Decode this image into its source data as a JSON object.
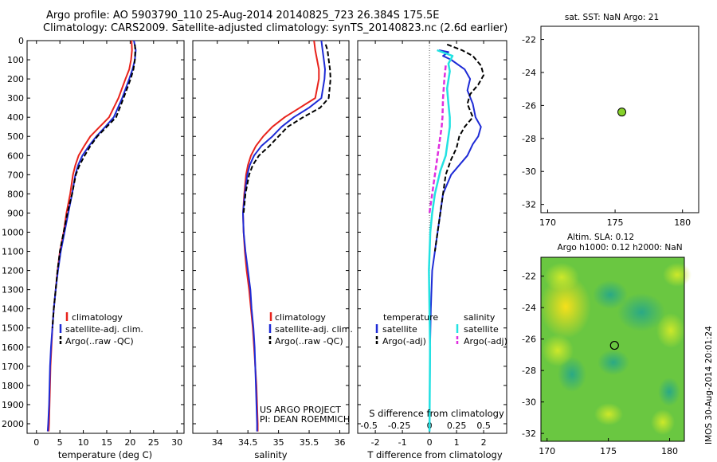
{
  "header": {
    "line1": "Argo profile: AO 5903790_110 25-Aug-2014 20140825_723 26.384S 175.5E",
    "line2": "Climatology: CARS2009. Satellite-adjusted climatology: synTS_20140823.nc (2.6d earlier)"
  },
  "colors": {
    "climatology": "#e8231c",
    "satellite": "#1e2bd6",
    "argo": "#000000",
    "sal_satellite": "#22e2e2",
    "sal_argo": "#e02ee0",
    "sst_marker": "#86d12a"
  },
  "legend_left": [
    "climatology",
    "satellite-adj. clim.",
    "Argo(..raw -QC)"
  ],
  "legend_diff": {
    "temperature": "temperature",
    "salinity": "salinity",
    "t_sat": "satellite",
    "t_argo": "Argo(-adj)",
    "s_sat": "satellite",
    "s_argo": "Argo(-adj)"
  },
  "credits": {
    "line1": "US ARGO PROJECT",
    "line2": "PI: DEAN ROEMMICH"
  },
  "sst_map": {
    "title": "sat. SST: NaN Argo: 21",
    "xticks": [
      "170",
      "175",
      "180"
    ],
    "yticks": [
      "-22",
      "-24",
      "-26",
      "-28",
      "-30",
      "-32"
    ],
    "xlim": [
      169.5,
      181.2
    ],
    "ylim": [
      -32.5,
      -21.2
    ],
    "float_position": [
      175.5,
      -26.4
    ]
  },
  "sla_map": {
    "title1": "Altim. SLA: 0.12",
    "title2": "Argo h1000: 0.12 h2000: NaN",
    "xticks": [
      "170",
      "175",
      "180"
    ],
    "yticks": [
      "-22",
      "-24",
      "-26",
      "-28",
      "-30",
      "-32"
    ],
    "xlim": [
      169.5,
      181.2
    ],
    "ylim": [
      -32.5,
      -20.8
    ],
    "float_position": [
      175.5,
      -26.4
    ]
  },
  "timestamp": "IMOS 30-Aug-2014 20:01:24",
  "chart_data": [
    {
      "type": "line",
      "panel": "temperature",
      "xlabel": "temperature (deg C)",
      "ylabel": "",
      "xlim": [
        -2,
        31.5
      ],
      "ylim": [
        2050,
        0
      ],
      "xticks": [
        0,
        5,
        10,
        15,
        20,
        25,
        30
      ],
      "yticks": [
        0,
        100,
        200,
        300,
        400,
        500,
        600,
        700,
        800,
        900,
        1000,
        1100,
        1200,
        1300,
        1400,
        1500,
        1600,
        1700,
        1800,
        1900,
        2000
      ],
      "series": [
        {
          "key": "climatology",
          "name": "climatology",
          "points": [
            [
              20.3,
              0
            ],
            [
              20.4,
              50
            ],
            [
              20.2,
              100
            ],
            [
              19.8,
              150
            ],
            [
              19.0,
              200
            ],
            [
              17.5,
              300
            ],
            [
              15.5,
              400
            ],
            [
              13.5,
              450
            ],
            [
              11.5,
              500
            ],
            [
              10.2,
              550
            ],
            [
              9.0,
              600
            ],
            [
              8.3,
              650
            ],
            [
              7.8,
              700
            ],
            [
              7.2,
              800
            ],
            [
              6.4,
              900
            ],
            [
              5.8,
              1000
            ],
            [
              5.0,
              1100
            ],
            [
              4.5,
              1200
            ],
            [
              4.1,
              1300
            ],
            [
              3.7,
              1400
            ],
            [
              3.4,
              1500
            ],
            [
              3.2,
              1600
            ],
            [
              3.0,
              1700
            ],
            [
              2.9,
              1800
            ],
            [
              2.8,
              1900
            ],
            [
              2.7,
              2000
            ],
            [
              2.6,
              2040
            ]
          ]
        },
        {
          "key": "satellite",
          "name": "satellite-adj. clim.",
          "points": [
            [
              20.8,
              0
            ],
            [
              21.2,
              50
            ],
            [
              21.0,
              100
            ],
            [
              20.5,
              150
            ],
            [
              19.8,
              200
            ],
            [
              18.3,
              300
            ],
            [
              16.5,
              400
            ],
            [
              14.7,
              450
            ],
            [
              12.8,
              500
            ],
            [
              11.2,
              550
            ],
            [
              9.8,
              600
            ],
            [
              8.9,
              650
            ],
            [
              8.3,
              700
            ],
            [
              7.6,
              800
            ],
            [
              6.8,
              900
            ],
            [
              6.0,
              1000
            ],
            [
              5.2,
              1100
            ],
            [
              4.6,
              1200
            ],
            [
              4.1,
              1300
            ],
            [
              3.7,
              1400
            ],
            [
              3.4,
              1500
            ],
            [
              3.1,
              1600
            ],
            [
              2.9,
              1700
            ],
            [
              2.8,
              1800
            ],
            [
              2.7,
              1900
            ],
            [
              2.5,
              2000
            ],
            [
              2.4,
              2040
            ]
          ]
        },
        {
          "key": "argo",
          "name": "Argo(..raw -QC)",
          "dashed": true,
          "points": [
            [
              21.0,
              20
            ],
            [
              21.1,
              50
            ],
            [
              21.0,
              100
            ],
            [
              20.7,
              150
            ],
            [
              20.1,
              200
            ],
            [
              18.6,
              300
            ],
            [
              17.0,
              400
            ],
            [
              15.0,
              450
            ],
            [
              13.0,
              500
            ],
            [
              11.5,
              550
            ],
            [
              10.3,
              600
            ],
            [
              9.2,
              650
            ],
            [
              8.4,
              700
            ],
            [
              7.6,
              800
            ],
            [
              6.6,
              900
            ],
            [
              5.8,
              1000
            ],
            [
              5.0,
              1100
            ],
            [
              4.5,
              1200
            ],
            [
              4.1,
              1300
            ],
            [
              3.7,
              1400
            ],
            [
              3.4,
              1500
            ]
          ]
        }
      ]
    },
    {
      "type": "line",
      "panel": "salinity",
      "xlabel": "salinity",
      "ylabel": "",
      "xlim": [
        33.6,
        36.15
      ],
      "ylim": [
        2050,
        0
      ],
      "xticks": [
        34,
        34.5,
        35,
        35.5,
        36
      ],
      "series": [
        {
          "key": "climatology",
          "name": "climatology",
          "points": [
            [
              35.58,
              0
            ],
            [
              35.6,
              50
            ],
            [
              35.63,
              100
            ],
            [
              35.66,
              150
            ],
            [
              35.66,
              200
            ],
            [
              35.6,
              300
            ],
            [
              35.35,
              350
            ],
            [
              35.1,
              400
            ],
            [
              34.9,
              450
            ],
            [
              34.75,
              500
            ],
            [
              34.63,
              550
            ],
            [
              34.55,
              600
            ],
            [
              34.5,
              650
            ],
            [
              34.47,
              700
            ],
            [
              34.44,
              800
            ],
            [
              34.42,
              900
            ],
            [
              34.43,
              1000
            ],
            [
              34.45,
              1100
            ],
            [
              34.48,
              1200
            ],
            [
              34.52,
              1300
            ],
            [
              34.55,
              1400
            ],
            [
              34.58,
              1500
            ],
            [
              34.6,
              1600
            ],
            [
              34.62,
              1700
            ],
            [
              34.64,
              1800
            ],
            [
              34.65,
              1900
            ],
            [
              34.66,
              2000
            ],
            [
              34.66,
              2040
            ]
          ]
        },
        {
          "key": "satellite",
          "name": "satellite-adj. clim.",
          "points": [
            [
              35.7,
              0
            ],
            [
              35.72,
              50
            ],
            [
              35.74,
              100
            ],
            [
              35.76,
              150
            ],
            [
              35.75,
              200
            ],
            [
              35.7,
              300
            ],
            [
              35.5,
              350
            ],
            [
              35.25,
              400
            ],
            [
              35.05,
              450
            ],
            [
              34.9,
              500
            ],
            [
              34.72,
              550
            ],
            [
              34.6,
              600
            ],
            [
              34.53,
              650
            ],
            [
              34.49,
              700
            ],
            [
              34.45,
              800
            ],
            [
              34.42,
              900
            ],
            [
              34.43,
              1000
            ],
            [
              34.46,
              1100
            ],
            [
              34.5,
              1200
            ],
            [
              34.54,
              1300
            ],
            [
              34.56,
              1400
            ],
            [
              34.59,
              1500
            ],
            [
              34.61,
              1600
            ],
            [
              34.62,
              1700
            ],
            [
              34.63,
              1800
            ],
            [
              34.64,
              1900
            ],
            [
              34.65,
              2000
            ],
            [
              34.65,
              2040
            ]
          ]
        },
        {
          "key": "argo",
          "name": "Argo(..raw -QC)",
          "dashed": true,
          "points": [
            [
              35.77,
              20
            ],
            [
              35.8,
              50
            ],
            [
              35.82,
              100
            ],
            [
              35.84,
              150
            ],
            [
              35.85,
              200
            ],
            [
              35.82,
              300
            ],
            [
              35.68,
              350
            ],
            [
              35.4,
              400
            ],
            [
              35.15,
              450
            ],
            [
              35.0,
              500
            ],
            [
              34.85,
              550
            ],
            [
              34.68,
              600
            ],
            [
              34.58,
              650
            ],
            [
              34.52,
              700
            ],
            [
              34.46,
              800
            ],
            [
              34.43,
              900
            ]
          ]
        }
      ]
    },
    {
      "type": "line",
      "panel": "difference",
      "xlabel": "T difference from climatology",
      "x2label": "S difference from climatology",
      "ylim": [
        2050,
        0
      ],
      "xlim": [
        -2.65,
        2.85
      ],
      "xticks": [
        -2,
        -1,
        0,
        1,
        2
      ],
      "x2ticks": [
        "-0.5",
        "-0.25",
        "0",
        "0.25",
        "0.5"
      ],
      "series": [
        {
          "key": "t_sat",
          "name": "satellite",
          "points": [
            [
              0.35,
              50
            ],
            [
              0.7,
              60
            ],
            [
              0.5,
              80
            ],
            [
              0.8,
              100
            ],
            [
              1.3,
              150
            ],
            [
              1.5,
              200
            ],
            [
              1.4,
              260
            ],
            [
              1.6,
              330
            ],
            [
              1.7,
              400
            ],
            [
              1.9,
              450
            ],
            [
              1.8,
              500
            ],
            [
              1.6,
              540
            ],
            [
              1.4,
              600
            ],
            [
              1.1,
              650
            ],
            [
              0.8,
              700
            ],
            [
              0.5,
              800
            ],
            [
              0.4,
              900
            ],
            [
              0.3,
              1000
            ],
            [
              0.2,
              1100
            ],
            [
              0.1,
              1200
            ],
            [
              0.05,
              1400
            ],
            [
              0.02,
              1600
            ],
            [
              0.0,
              2040
            ]
          ]
        },
        {
          "key": "t_argo",
          "name": "Argo(-adj)",
          "dashed": true,
          "points": [
            [
              0.65,
              20
            ],
            [
              1.2,
              50
            ],
            [
              1.6,
              80
            ],
            [
              1.9,
              130
            ],
            [
              2.0,
              180
            ],
            [
              1.8,
              230
            ],
            [
              1.5,
              280
            ],
            [
              1.4,
              330
            ],
            [
              1.6,
              400
            ],
            [
              1.3,
              450
            ],
            [
              1.1,
              500
            ],
            [
              1.0,
              560
            ],
            [
              0.8,
              620
            ],
            [
              0.6,
              700
            ],
            [
              0.5,
              800
            ],
            [
              0.4,
              900
            ],
            [
              0.3,
              1000
            ],
            [
              0.2,
              1100
            ]
          ]
        },
        {
          "key": "s_sat",
          "name": "satellite",
          "points": [
            [
              0.28,
              50
            ],
            [
              0.85,
              80
            ],
            [
              0.7,
              120
            ],
            [
              0.75,
              160
            ],
            [
              0.65,
              250
            ],
            [
              0.7,
              330
            ],
            [
              0.75,
              400
            ],
            [
              0.75,
              450
            ],
            [
              0.7,
              500
            ],
            [
              0.6,
              600
            ],
            [
              0.4,
              680
            ],
            [
              0.2,
              800
            ],
            [
              0.1,
              900
            ],
            [
              0.03,
              1000
            ],
            [
              -0.02,
              1200
            ],
            [
              0.0,
              1400
            ],
            [
              0.02,
              1600
            ],
            [
              0.0,
              2040
            ]
          ]
        },
        {
          "key": "s_argo",
          "name": "Argo(-adj)",
          "dashed": true,
          "points": [
            [
              0.6,
              130
            ],
            [
              0.55,
              200
            ],
            [
              0.5,
              300
            ],
            [
              0.48,
              400
            ],
            [
              0.45,
              450
            ],
            [
              0.4,
              500
            ],
            [
              0.3,
              600
            ],
            [
              0.2,
              700
            ],
            [
              0.1,
              800
            ],
            [
              0.0,
              900
            ]
          ]
        }
      ]
    }
  ]
}
